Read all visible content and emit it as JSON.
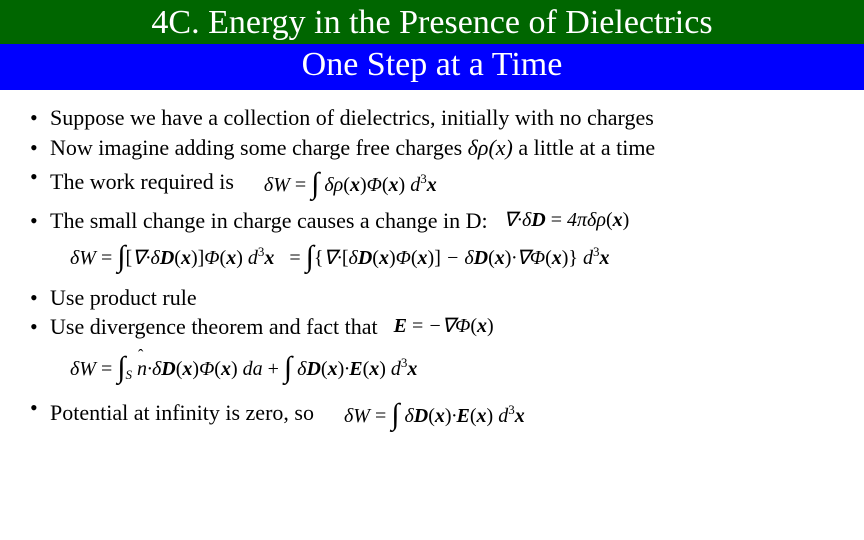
{
  "header": {
    "title_line1": "4C. Energy in the Presence of Dielectrics",
    "title_line2": "One Step at a Time"
  },
  "bullets": {
    "b1": "Suppose we have a collection of dielectrics, initially with no charges",
    "b2_pre": "Now imagine adding some charge free charges ",
    "b2_sym": "δρ(x)",
    "b2_post": " a little at a time",
    "b3": "The work required is",
    "b4": "The small change in charge causes a change in D:",
    "b5": "Use product rule",
    "b6": "Use divergence theorem and fact that",
    "b7": "Potential at infinity is zero, so"
  },
  "equations": {
    "eq1": "δW = ∫ δρ(x) Φ(x) d³x",
    "eq_divD": "∇·δD = 4π δρ(x)",
    "eq2a": "δW = ∫ [∇·δD(x)] Φ(x) d³x",
    "eq2b": "= ∫ { ∇·[δD(x) Φ(x)] − δD(x)·∇Φ(x) } d³x",
    "eq_E": "E = −∇Φ(x)",
    "eq3": "δW = ∫ₛ n̂·δD(x) Φ(x) da + ∫ δD(x)·E(x) d³x",
    "eq4": "δW = ∫ δD(x)·E(x) d³x"
  },
  "style": {
    "header_green_bg": "#006600",
    "header_blue_bg": "#0000ff",
    "header_text_color": "#ffffff",
    "body_text_color": "#000000",
    "page_bg": "#ffffff",
    "header_fontsize": 34,
    "body_fontsize": 22,
    "eq_fontsize": 20,
    "font_family": "Times New Roman"
  }
}
